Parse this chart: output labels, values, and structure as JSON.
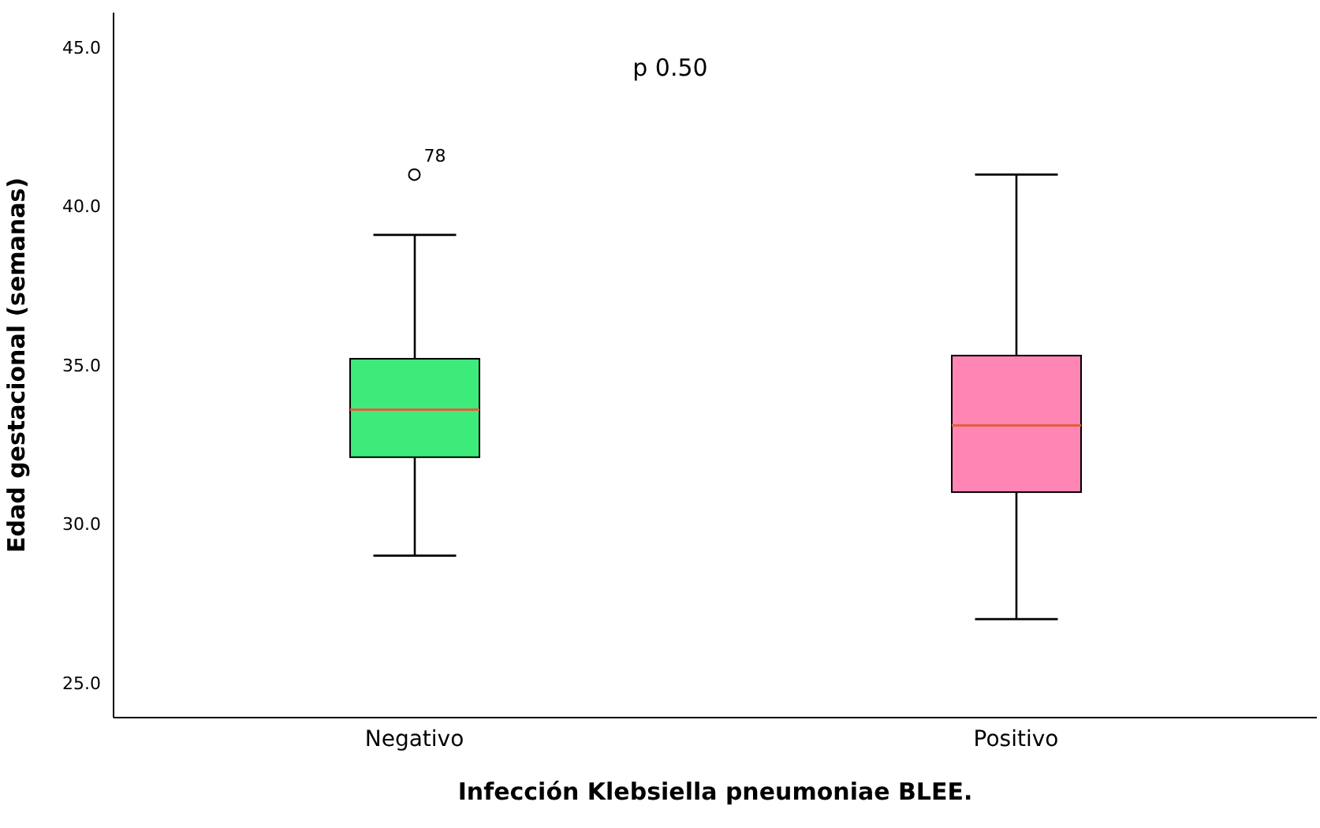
{
  "chart_data": {
    "type": "box",
    "xlabel": "Infección Klebsiella pneumoniae BLEE.",
    "ylabel": "Edad gestacional (semanas)",
    "categories": [
      "Negativo",
      "Positivo"
    ],
    "boxes": [
      {
        "low": 29.0,
        "q1": 32.1,
        "median": 33.6,
        "q3": 35.2,
        "high": 39.1,
        "outliers": [
          41.0
        ]
      },
      {
        "low": 27.0,
        "q1": 31.0,
        "median": 33.1,
        "q3": 35.3,
        "high": 41.0
      }
    ],
    "colors": [
      "#3deb7a",
      "#ff85b4"
    ],
    "ylim": [
      23.9,
      46.1
    ],
    "yticks": [
      {
        "value": 25,
        "label": "25.0"
      },
      {
        "value": 30,
        "label": "30.0"
      },
      {
        "value": 35,
        "label": "35.0"
      },
      {
        "value": 40,
        "label": "40.0"
      },
      {
        "value": 45,
        "label": "45.0"
      }
    ],
    "annotations": [
      "p 0.50",
      "78"
    ],
    "grid": false,
    "legend": false
  }
}
